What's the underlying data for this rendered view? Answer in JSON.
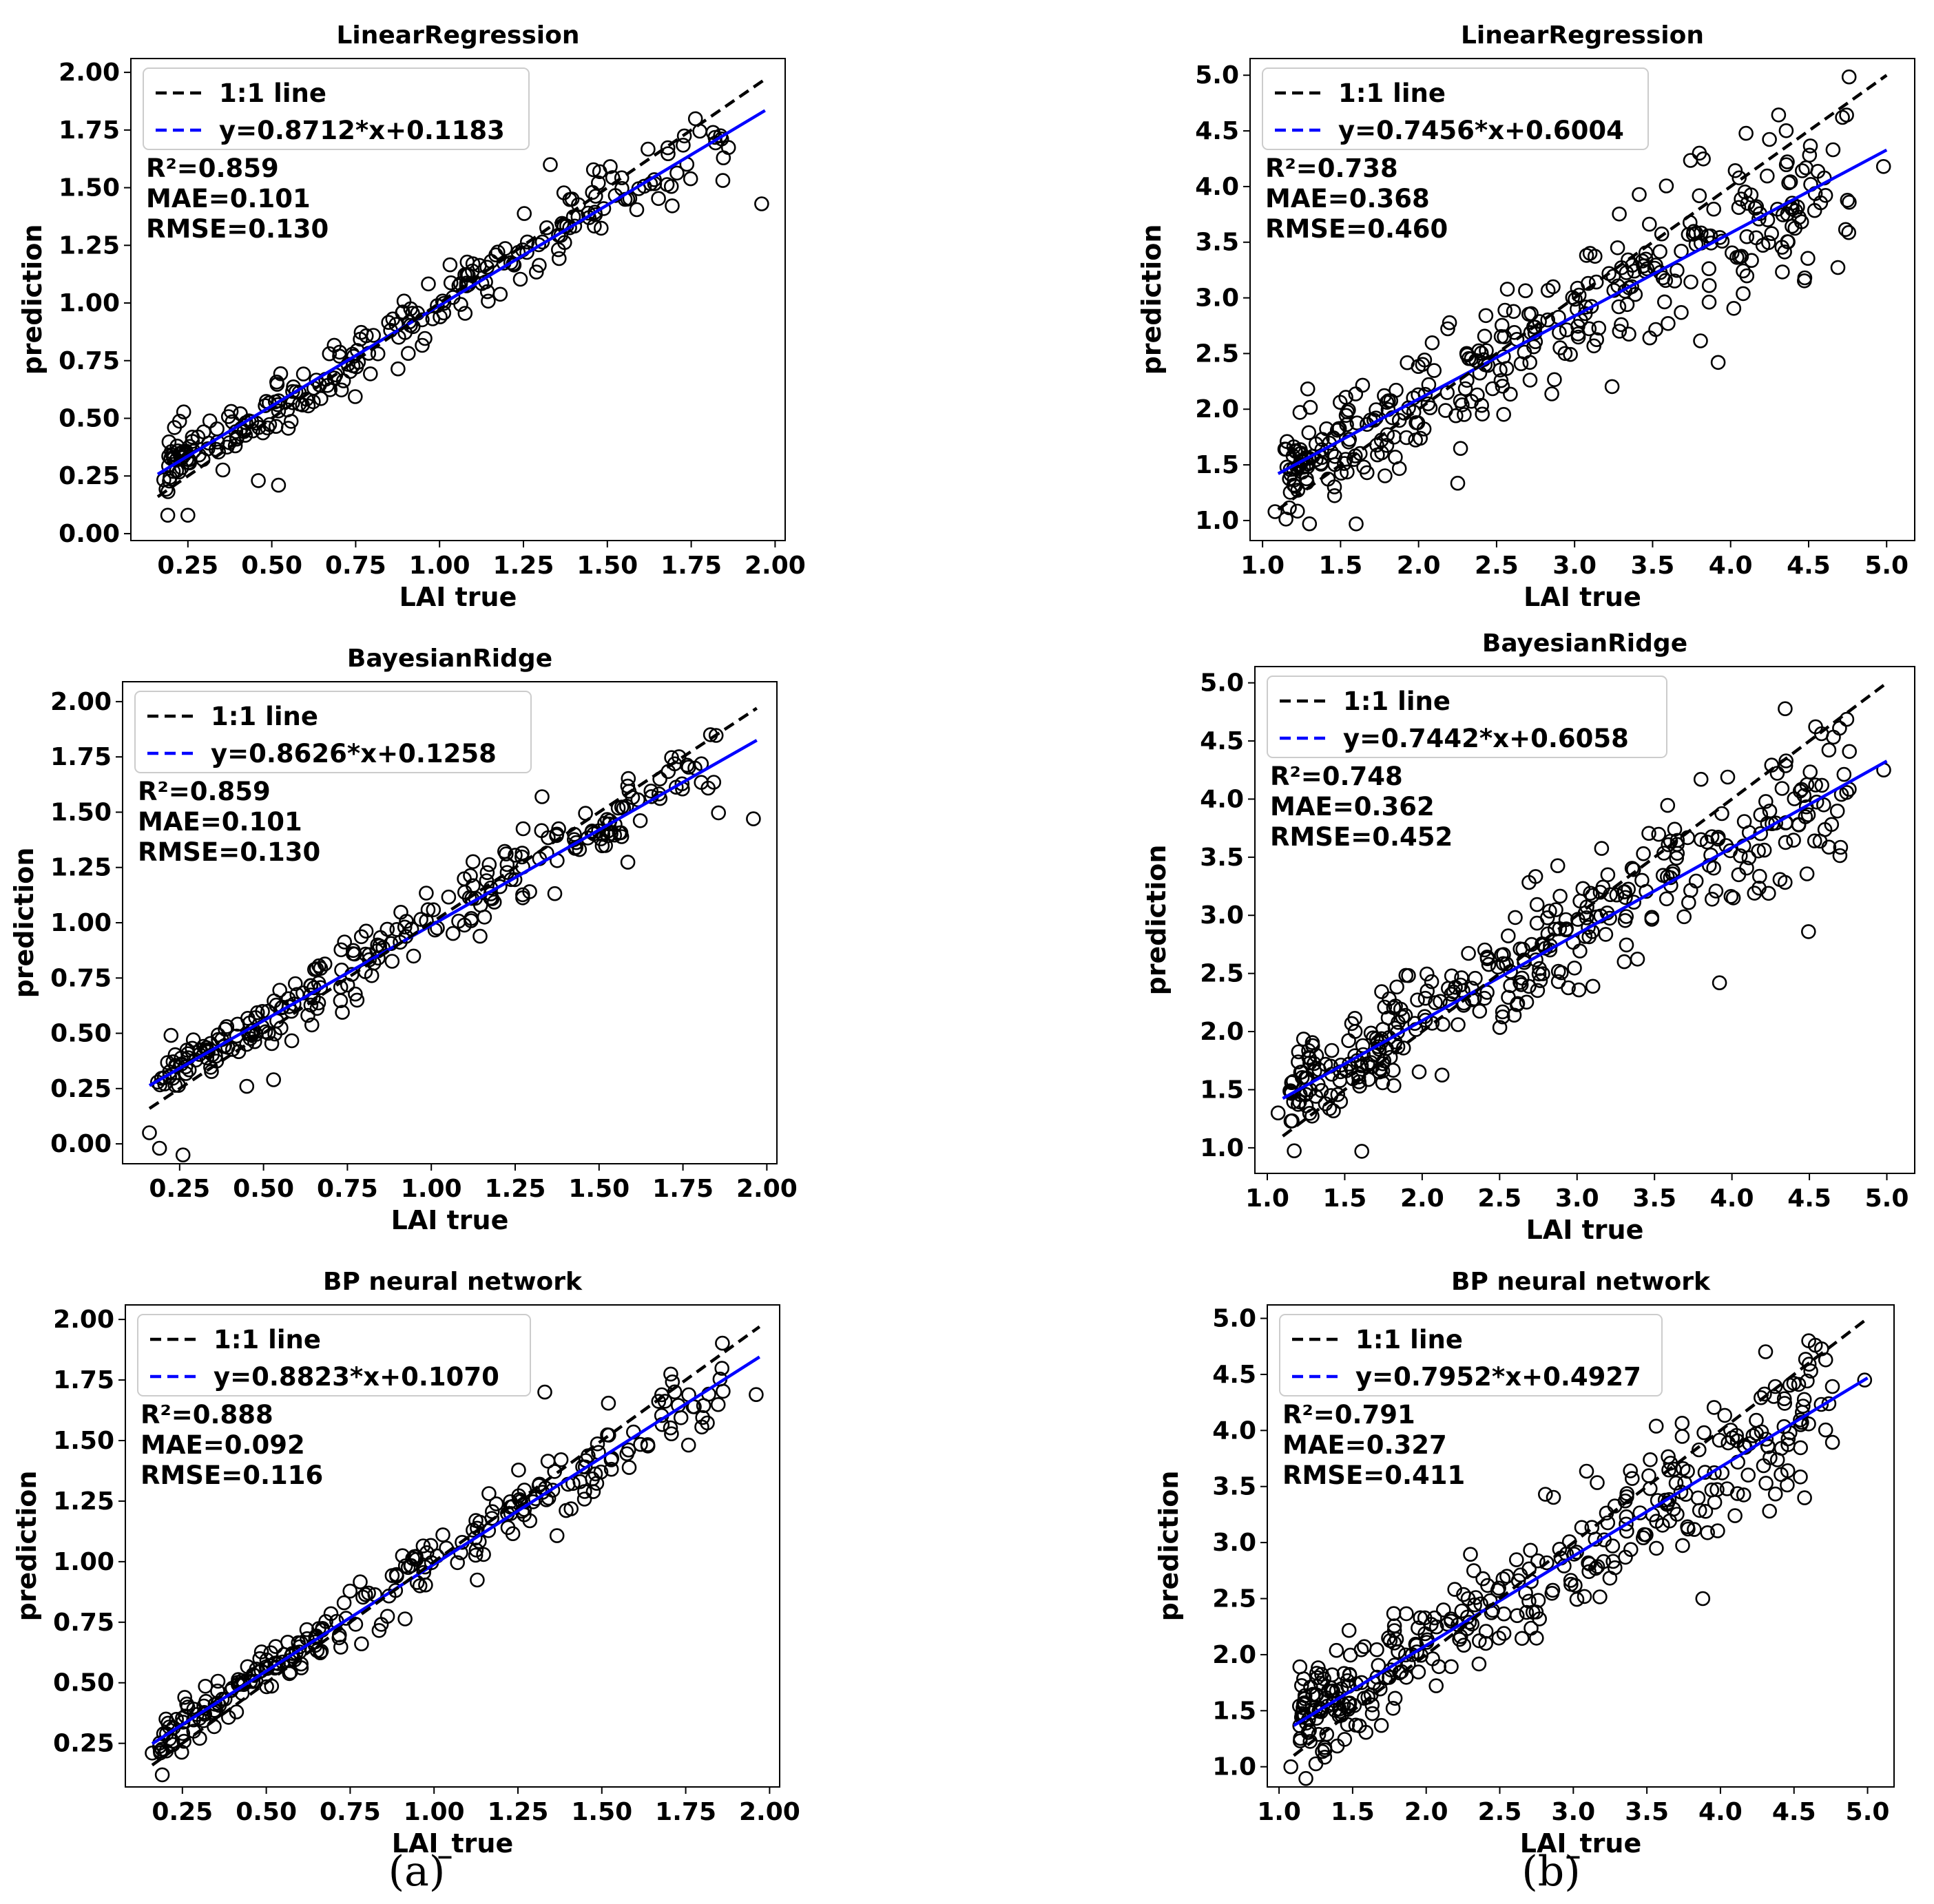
{
  "captions": [
    "(a)",
    "(b)"
  ],
  "colors": {
    "identity": "#000000",
    "fit": "#0000ff",
    "marker_edge": "#000000"
  },
  "chart_data": [
    {
      "id": "a1",
      "type": "scatter",
      "title": "LinearRegression",
      "xlabel": "LAI true",
      "ylabel": "prediction",
      "xlim": [
        0.08,
        2.03
      ],
      "ylim": [
        -0.03,
        2.06
      ],
      "xticks": [
        "0.25",
        "0.50",
        "0.75",
        "1.00",
        "1.25",
        "1.50",
        "1.75",
        "2.00"
      ],
      "yticks": [
        "0.00",
        "0.25",
        "0.50",
        "0.75",
        "1.00",
        "1.25",
        "1.50",
        "1.75",
        "2.00"
      ],
      "legend": {
        "placement": "upper-left",
        "identity_label": "1:1 line",
        "fit_label": "y=0.8712*x+0.1183"
      },
      "fit": {
        "slope": 0.8712,
        "intercept": 0.1183
      },
      "line_x": [
        0.16,
        1.97
      ],
      "stats": {
        "r2": "R²=0.859",
        "mae": "MAE=0.101",
        "rmse": "RMSE=0.130"
      },
      "seed": 11,
      "n_points": 260,
      "noise": 0.1,
      "outliers": [
        [
          1.96,
          1.43
        ],
        [
          0.25,
          0.08
        ],
        [
          0.19,
          0.08
        ],
        [
          0.52,
          0.21
        ],
        [
          0.46,
          0.23
        ],
        [
          1.33,
          1.6
        ],
        [
          0.21,
          0.46
        ]
      ]
    },
    {
      "id": "b1",
      "type": "scatter",
      "title": "LinearRegression",
      "xlabel": "LAI true",
      "ylabel": "prediction",
      "xlim": [
        0.92,
        5.18
      ],
      "ylim": [
        0.82,
        5.15
      ],
      "xticks": [
        "1.0",
        "1.5",
        "2.0",
        "2.5",
        "3.0",
        "3.5",
        "4.0",
        "4.5",
        "5.0"
      ],
      "yticks": [
        "1.0",
        "1.5",
        "2.0",
        "2.5",
        "3.0",
        "3.5",
        "4.0",
        "4.5",
        "5.0"
      ],
      "legend": {
        "placement": "upper-left",
        "identity_label": "1:1 line",
        "fit_label": "y=0.7456*x+0.6004"
      },
      "fit": {
        "slope": 0.7456,
        "intercept": 0.6004
      },
      "line_x": [
        1.1,
        5.0
      ],
      "stats": {
        "r2": "R²=0.738",
        "mae": "MAE=0.368",
        "rmse": "RMSE=0.460"
      },
      "seed": 23,
      "n_points": 360,
      "noise": 0.38,
      "outliers": [
        [
          3.92,
          2.42
        ],
        [
          1.08,
          1.08
        ],
        [
          1.6,
          0.97
        ],
        [
          4.98,
          4.18
        ],
        [
          3.8,
          4.3
        ]
      ]
    },
    {
      "id": "a2",
      "type": "scatter",
      "title": "BayesianRidge",
      "xlabel": "LAI true",
      "ylabel": "prediction",
      "xlim": [
        0.08,
        2.03
      ],
      "ylim": [
        -0.09,
        2.09
      ],
      "xticks": [
        "0.25",
        "0.50",
        "0.75",
        "1.00",
        "1.25",
        "1.50",
        "1.75",
        "2.00"
      ],
      "yticks": [
        "0.00",
        "0.25",
        "0.50",
        "0.75",
        "1.00",
        "1.25",
        "1.50",
        "1.75",
        "2.00"
      ],
      "legend": {
        "placement": "upper-left",
        "identity_label": "1:1 line",
        "fit_label": "y=0.8626*x+0.1258"
      },
      "fit": {
        "slope": 0.8626,
        "intercept": 0.1258
      },
      "line_x": [
        0.16,
        1.97
      ],
      "stats": {
        "r2": "R²=0.859",
        "mae": "MAE=0.101",
        "rmse": "RMSE=0.130"
      },
      "seed": 37,
      "n_points": 260,
      "noise": 0.1,
      "outliers": [
        [
          1.96,
          1.47
        ],
        [
          0.16,
          0.05
        ],
        [
          0.19,
          -0.02
        ],
        [
          0.26,
          -0.05
        ],
        [
          0.45,
          0.26
        ],
        [
          0.53,
          0.29
        ],
        [
          1.33,
          1.57
        ]
      ]
    },
    {
      "id": "b2",
      "type": "scatter",
      "title": "BayesianRidge",
      "xlabel": "LAI true",
      "ylabel": "prediction",
      "xlim": [
        0.92,
        5.18
      ],
      "ylim": [
        0.78,
        5.14
      ],
      "xticks": [
        "1.0",
        "1.5",
        "2.0",
        "2.5",
        "3.0",
        "3.5",
        "4.0",
        "4.5",
        "5.0"
      ],
      "yticks": [
        "1.0",
        "1.5",
        "2.0",
        "2.5",
        "3.0",
        "3.5",
        "4.0",
        "4.5",
        "5.0"
      ],
      "legend": {
        "placement": "upper-left",
        "identity_label": "1:1 line",
        "fit_label": "y=0.7442*x+0.6058"
      },
      "fit": {
        "slope": 0.7442,
        "intercept": 0.6058
      },
      "line_x": [
        1.1,
        5.0
      ],
      "stats": {
        "r2": "R²=0.748",
        "mae": "MAE=0.362",
        "rmse": "RMSE=0.452"
      },
      "seed": 41,
      "n_points": 360,
      "noise": 0.36,
      "outliers": [
        [
          3.92,
          2.42
        ],
        [
          1.61,
          0.97
        ],
        [
          4.98,
          4.25
        ],
        [
          1.07,
          1.3
        ],
        [
          3.8,
          4.17
        ]
      ]
    },
    {
      "id": "a3",
      "type": "scatter",
      "title": "BP neural network",
      "xlabel": "LAI_true",
      "ylabel": "prediction",
      "xlim": [
        0.08,
        2.03
      ],
      "ylim": [
        0.07,
        2.06
      ],
      "xticks": [
        "0.25",
        "0.50",
        "0.75",
        "1.00",
        "1.25",
        "1.50",
        "1.75",
        "2.00"
      ],
      "yticks": [
        "0.25",
        "0.50",
        "0.75",
        "1.00",
        "1.25",
        "1.50",
        "1.75",
        "2.00"
      ],
      "legend": {
        "placement": "upper-left",
        "identity_label": "1:1 line",
        "fit_label": "y=0.8823*x+0.1070"
      },
      "fit": {
        "slope": 0.8823,
        "intercept": 0.107
      },
      "line_x": [
        0.16,
        1.97
      ],
      "stats": {
        "r2": "R²=0.888",
        "mae": "MAE=0.092",
        "rmse": "RMSE=0.116"
      },
      "seed": 53,
      "n_points": 260,
      "noise": 0.085,
      "outliers": [
        [
          1.96,
          1.69
        ],
        [
          0.19,
          0.12
        ],
        [
          0.16,
          0.21
        ],
        [
          1.33,
          1.7
        ]
      ]
    },
    {
      "id": "b3",
      "type": "scatter",
      "title": "BP neural network",
      "xlabel": "LAI_true",
      "ylabel": "prediction",
      "xlim": [
        0.92,
        5.18
      ],
      "ylim": [
        0.82,
        5.12
      ],
      "xticks": [
        "1.0",
        "1.5",
        "2.0",
        "2.5",
        "3.0",
        "3.5",
        "4.0",
        "4.5",
        "5.0"
      ],
      "yticks": [
        "1.0",
        "1.5",
        "2.0",
        "2.5",
        "3.0",
        "3.5",
        "4.0",
        "4.5",
        "5.0"
      ],
      "legend": {
        "placement": "upper-left",
        "identity_label": "1:1 line",
        "fit_label": "y=0.7952*x+0.4927"
      },
      "fit": {
        "slope": 0.7952,
        "intercept": 0.4927
      },
      "line_x": [
        1.1,
        5.0
      ],
      "stats": {
        "r2": "R²=0.791",
        "mae": "MAE=0.327",
        "rmse": "RMSE=0.411"
      },
      "seed": 67,
      "n_points": 360,
      "noise": 0.33,
      "outliers": [
        [
          4.6,
          4.8
        ],
        [
          1.08,
          1.0
        ],
        [
          4.98,
          4.45
        ],
        [
          3.88,
          2.5
        ]
      ]
    }
  ]
}
